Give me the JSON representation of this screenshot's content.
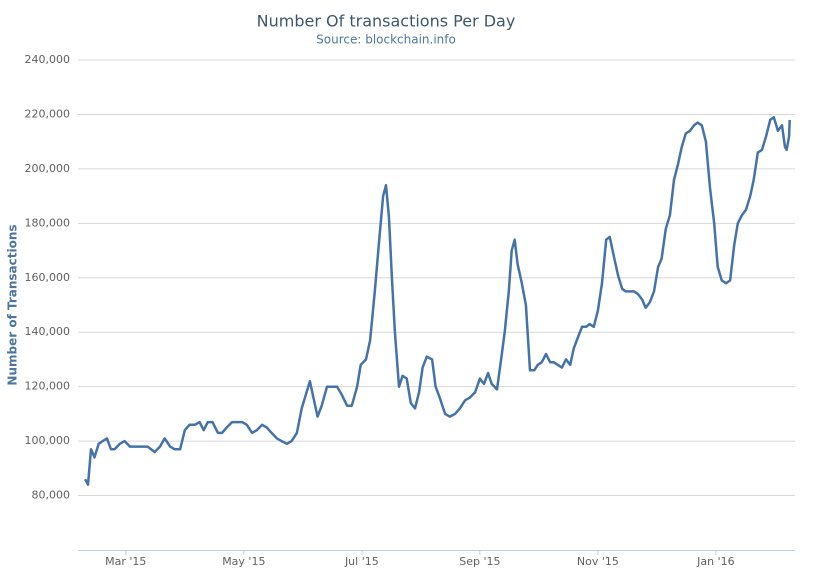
{
  "chart_data": {
    "type": "line",
    "title": "Number Of transactions Per Day",
    "subtitle": "Source: blockchain.info",
    "y_label": "Number of Transactions",
    "grid": true,
    "xlim": [
      2.19,
      14.34
    ],
    "xticks": [
      {
        "value": 3,
        "label": "Mar '15"
      },
      {
        "value": 5,
        "label": "May '15"
      },
      {
        "value": 7,
        "label": "Jul '15"
      },
      {
        "value": 9,
        "label": "Sep '15"
      },
      {
        "value": 11,
        "label": "Nov '15"
      },
      {
        "value": 13,
        "label": "Jan '16"
      }
    ],
    "ylim": [
      60000,
      240000
    ],
    "yticks": [
      {
        "value": 80000,
        "label": "80,000"
      },
      {
        "value": 100000,
        "label": "100,000"
      },
      {
        "value": 120000,
        "label": "120,000"
      },
      {
        "value": 140000,
        "label": "140,000"
      },
      {
        "value": 160000,
        "label": "160,000"
      },
      {
        "value": 180000,
        "label": "180,000"
      },
      {
        "value": 200000,
        "label": "200,000"
      },
      {
        "value": 220000,
        "label": "220,000"
      },
      {
        "value": 240000,
        "label": "240,000"
      }
    ],
    "x": [
      2.31,
      2.36,
      2.41,
      2.47,
      2.54,
      2.61,
      2.68,
      2.75,
      2.81,
      2.9,
      2.98,
      3.07,
      3.17,
      3.27,
      3.37,
      3.49,
      3.58,
      3.66,
      3.75,
      3.83,
      3.92,
      4.0,
      4.08,
      4.17,
      4.25,
      4.32,
      4.39,
      4.47,
      4.56,
      4.63,
      4.71,
      4.8,
      4.88,
      4.97,
      5.05,
      5.14,
      5.22,
      5.31,
      5.39,
      5.47,
      5.56,
      5.64,
      5.73,
      5.81,
      5.9,
      5.98,
      6.05,
      6.12,
      6.19,
      6.25,
      6.32,
      6.41,
      6.49,
      6.58,
      6.66,
      6.75,
      6.83,
      6.92,
      6.98,
      7.07,
      7.14,
      7.22,
      7.29,
      7.36,
      7.41,
      7.46,
      7.51,
      7.56,
      7.63,
      7.69,
      7.76,
      7.83,
      7.9,
      7.97,
      8.03,
      8.1,
      8.19,
      8.25,
      8.32,
      8.41,
      8.49,
      8.58,
      8.66,
      8.75,
      8.83,
      8.92,
      9.0,
      9.07,
      9.14,
      9.2,
      9.29,
      9.36,
      9.42,
      9.49,
      9.54,
      9.59,
      9.64,
      9.71,
      9.78,
      9.85,
      9.92,
      9.98,
      10.05,
      10.12,
      10.19,
      10.25,
      10.32,
      10.39,
      10.46,
      10.53,
      10.59,
      10.66,
      10.73,
      10.8,
      10.86,
      10.93,
      11.0,
      11.07,
      11.14,
      11.2,
      11.27,
      11.34,
      11.41,
      11.47,
      11.54,
      11.61,
      11.68,
      11.75,
      11.81,
      11.88,
      11.95,
      12.02,
      12.08,
      12.15,
      12.22,
      12.29,
      12.36,
      12.42,
      12.49,
      12.56,
      12.63,
      12.69,
      12.76,
      12.83,
      12.9,
      12.97,
      13.03,
      13.1,
      13.17,
      13.24,
      13.31,
      13.37,
      13.44,
      13.51,
      13.58,
      13.64,
      13.71,
      13.78,
      13.85,
      13.92,
      13.98,
      14.05,
      14.12,
      14.17,
      14.2,
      14.24,
      14.25
    ],
    "series": [
      {
        "name": "Transactions",
        "color": "#4572a7",
        "values": [
          86000,
          84000,
          97000,
          94000,
          99000,
          100000,
          101000,
          97000,
          97000,
          99000,
          100000,
          98000,
          98000,
          98000,
          98000,
          96000,
          98000,
          101000,
          98000,
          97000,
          97000,
          104000,
          106000,
          106000,
          107000,
          104000,
          107000,
          107000,
          103000,
          103000,
          105000,
          107000,
          107000,
          107000,
          106000,
          103000,
          104000,
          106000,
          105000,
          103000,
          101000,
          100000,
          99000,
          100000,
          103000,
          112000,
          117000,
          122000,
          115000,
          109000,
          113000,
          120000,
          120000,
          120000,
          117000,
          113000,
          113000,
          120000,
          128000,
          130000,
          137000,
          155000,
          173000,
          190000,
          194000,
          182000,
          160000,
          140000,
          120000,
          124000,
          123000,
          114000,
          112000,
          118000,
          127000,
          131000,
          130000,
          120000,
          116000,
          110000,
          109000,
          110000,
          112000,
          115000,
          116000,
          118000,
          123000,
          121000,
          125000,
          121000,
          119000,
          130000,
          140000,
          155000,
          170000,
          174000,
          165000,
          158000,
          150000,
          126000,
          126000,
          128000,
          129000,
          132000,
          129000,
          129000,
          128000,
          127000,
          130000,
          128000,
          134000,
          138000,
          142000,
          142000,
          143000,
          142000,
          148000,
          158000,
          174000,
          175000,
          168000,
          161000,
          156000,
          155000,
          155000,
          155000,
          154000,
          152000,
          149000,
          151000,
          155000,
          164000,
          167000,
          178000,
          183000,
          196000,
          202000,
          208000,
          213000,
          214000,
          216000,
          217000,
          216000,
          210000,
          193000,
          180000,
          164000,
          159000,
          158000,
          159000,
          172000,
          180000,
          183000,
          185000,
          190000,
          196000,
          206000,
          207000,
          212000,
          218000,
          219000,
          214000,
          216000,
          208000,
          207000,
          212000,
          218000
        ]
      }
    ]
  }
}
